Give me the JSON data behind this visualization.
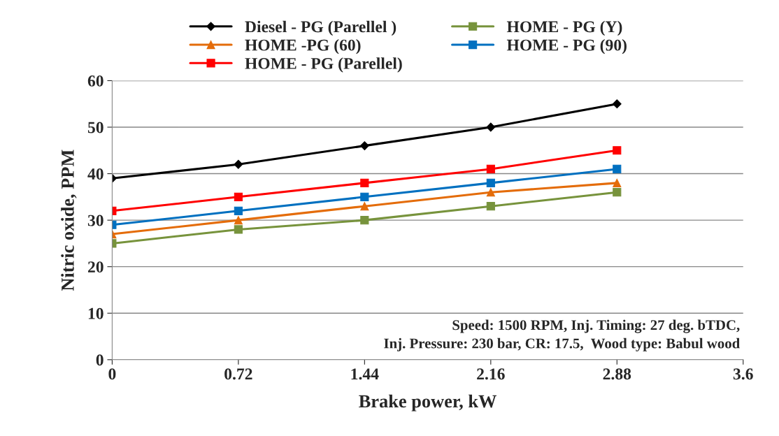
{
  "chart_data": {
    "type": "line",
    "xlabel": "Brake power, kW",
    "ylabel": "Nitric oxide, PPM",
    "x": [
      0,
      0.72,
      1.44,
      2.16,
      2.88
    ],
    "series": [
      {
        "name": "Diesel - PG (Parellel )",
        "color": "#000000",
        "marker": "diamond",
        "values": [
          39,
          42,
          46,
          50,
          55
        ]
      },
      {
        "name": "HOME -PG (60)",
        "color": "#e46c0a",
        "marker": "triangle",
        "values": [
          27,
          30,
          33,
          36,
          38
        ]
      },
      {
        "name": "HOME - PG (Parellel)",
        "color": "#ff0000",
        "marker": "square",
        "values": [
          32,
          35,
          38,
          41,
          45
        ]
      },
      {
        "name": "HOME - PG (Y)",
        "color": "#77933c",
        "marker": "square",
        "values": [
          25,
          28,
          30,
          33,
          36
        ]
      },
      {
        "name": "HOME - PG (90)",
        "color": "#0070c0",
        "marker": "square",
        "values": [
          29,
          32,
          35,
          38,
          41
        ]
      }
    ],
    "xlim": [
      0,
      3.6
    ],
    "xticks": [
      0,
      0.72,
      1.44,
      2.16,
      2.88,
      3.6
    ],
    "ylim": [
      0,
      60
    ],
    "yticks": [
      0,
      10,
      20,
      30,
      40,
      50,
      60
    ],
    "grid": "y",
    "legend": "top",
    "annotations": [
      "Speed: 1500 RPM, Inj. Timing: 27 deg. bTDC,\nInj. Pressure: 230 bar, CR: 17.5,  Wood type: Babul wood"
    ]
  }
}
